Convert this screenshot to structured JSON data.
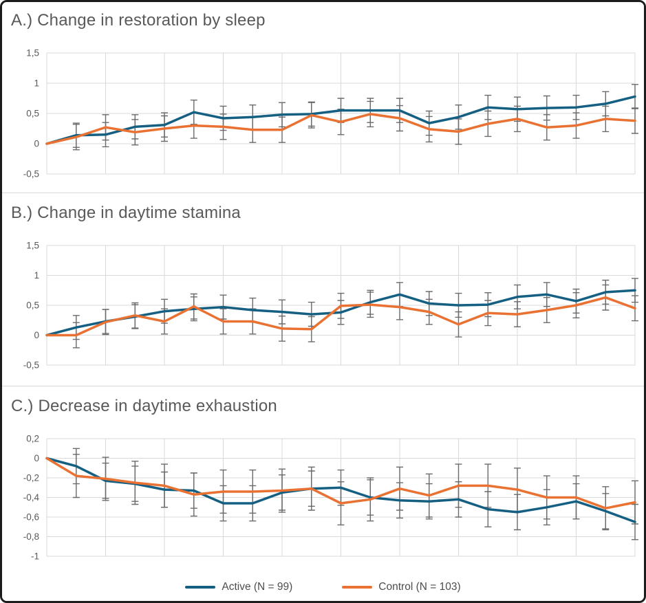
{
  "figure": {
    "border_color": "#1c1c1c",
    "background": "#ffffff",
    "gridline_color": "#D9D9D9",
    "errorbar_color": "#6a6a6a",
    "text_color": "#595959"
  },
  "legend": {
    "items": [
      {
        "label": "Active (N = 99)",
        "color": "#156082",
        "series": "active"
      },
      {
        "label": "Control (N = 103)",
        "color": "#E97132",
        "series": "control"
      }
    ]
  },
  "chart_data": [
    {
      "type": "line",
      "title": "A.) Change in restoration by sleep",
      "x_axis": "measurement index 0-20 (no tick labels shown)",
      "ylim": [
        -0.5,
        1.5
      ],
      "grid": true,
      "yticks": [
        {
          "v": 1.5,
          "label": "1,5"
        },
        {
          "v": 1,
          "label": "1"
        },
        {
          "v": 0.5,
          "label": "0,5"
        },
        {
          "v": 0,
          "label": "0"
        },
        {
          "v": -0.5,
          "label": "-0,5"
        }
      ],
      "series": [
        {
          "name": "Active (N = 99)",
          "color": "#156082",
          "err": 0.2,
          "values": [
            0,
            0.14,
            0.15,
            0.28,
            0.31,
            0.52,
            0.42,
            0.44,
            0.48,
            0.49,
            0.55,
            0.55,
            0.55,
            0.34,
            0.44,
            0.6,
            0.57,
            0.59,
            0.6,
            0.66,
            0.78
          ]
        },
        {
          "name": "Control (N = 103)",
          "color": "#E97132",
          "err": 0.21,
          "values": [
            0,
            0.11,
            0.27,
            0.19,
            0.25,
            0.3,
            0.28,
            0.23,
            0.23,
            0.47,
            0.36,
            0.49,
            0.42,
            0.24,
            0.2,
            0.33,
            0.41,
            0.27,
            0.3,
            0.41,
            0.38
          ]
        }
      ]
    },
    {
      "type": "line",
      "title": "B.) Change in daytime stamina",
      "x_axis": "measurement index 0-20 (no tick labels shown)",
      "ylim": [
        -0.5,
        1.5
      ],
      "grid": true,
      "yticks": [
        {
          "v": 1.5,
          "label": "1,5"
        },
        {
          "v": 1,
          "label": "1"
        },
        {
          "v": 0.5,
          "label": "0,5"
        },
        {
          "v": 0,
          "label": "0"
        },
        {
          "v": -0.5,
          "label": "-0,5"
        }
      ],
      "series": [
        {
          "name": "Active (N = 99)",
          "color": "#156082",
          "err": 0.2,
          "values": [
            0,
            0.13,
            0.23,
            0.31,
            0.4,
            0.44,
            0.47,
            0.42,
            0.39,
            0.35,
            0.38,
            0.55,
            0.68,
            0.53,
            0.5,
            0.51,
            0.64,
            0.68,
            0.57,
            0.72,
            0.75
          ]
        },
        {
          "name": "Control (N = 103)",
          "color": "#E97132",
          "err": 0.21,
          "values": [
            0,
            0.0,
            0.22,
            0.33,
            0.23,
            0.48,
            0.23,
            0.23,
            0.11,
            0.1,
            0.49,
            0.51,
            0.47,
            0.39,
            0.18,
            0.37,
            0.35,
            0.42,
            0.5,
            0.63,
            0.45
          ]
        }
      ]
    },
    {
      "type": "line",
      "title": "C.) Decrease in daytime exhaustion",
      "x_axis": "measurement index 0-20 (no tick labels shown)",
      "ylim": [
        -1,
        0.2
      ],
      "grid": true,
      "yticks": [
        {
          "v": 0.2,
          "label": "0,2"
        },
        {
          "v": 0,
          "label": "0"
        },
        {
          "v": -0.2,
          "label": "-0,2"
        },
        {
          "v": -0.4,
          "label": "-0,4"
        },
        {
          "v": -0.6,
          "label": "-0,6"
        },
        {
          "v": -0.8,
          "label": "-0,8"
        },
        {
          "v": -1,
          "label": "-1"
        }
      ],
      "series": [
        {
          "name": "Active (N = 99)",
          "color": "#156082",
          "err": 0.18,
          "values": [
            0,
            -0.08,
            -0.23,
            -0.26,
            -0.32,
            -0.33,
            -0.46,
            -0.46,
            -0.35,
            -0.31,
            -0.3,
            -0.4,
            -0.43,
            -0.44,
            -0.42,
            -0.52,
            -0.55,
            -0.5,
            -0.44,
            -0.54,
            -0.65
          ]
        },
        {
          "name": "Control (N = 103)",
          "color": "#E97132",
          "err": 0.22,
          "values": [
            0,
            -0.18,
            -0.21,
            -0.25,
            -0.28,
            -0.37,
            -0.34,
            -0.34,
            -0.33,
            -0.31,
            -0.46,
            -0.42,
            -0.31,
            -0.38,
            -0.28,
            -0.28,
            -0.32,
            -0.4,
            -0.4,
            -0.51,
            -0.45
          ]
        }
      ]
    }
  ]
}
